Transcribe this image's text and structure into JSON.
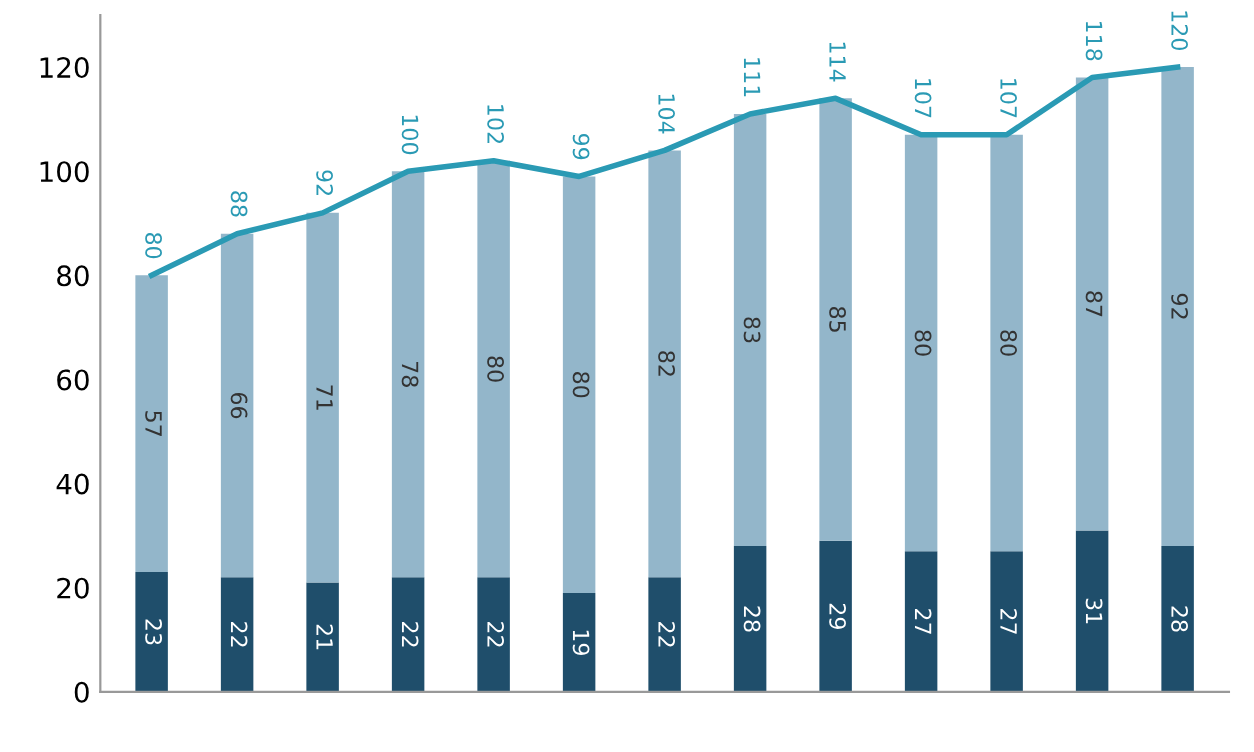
{
  "chart_data": {
    "type": "bar",
    "stacked": true,
    "data_labels": true,
    "categories": [
      null,
      null,
      null,
      null,
      null,
      null,
      null,
      null,
      null,
      null,
      null,
      null,
      null
    ],
    "series": [
      {
        "color": "#1f4e6b",
        "values": [
          23,
          22,
          21,
          22,
          22,
          19,
          22,
          28,
          29,
          27,
          27,
          31,
          28
        ]
      },
      {
        "color": "#93b6ca",
        "values": [
          57,
          66,
          71,
          78,
          80,
          80,
          82,
          83,
          85,
          80,
          80,
          87,
          92
        ]
      },
      {
        "type": "line",
        "color": "#2a9ab4",
        "values": [
          80,
          88,
          92,
          100,
          102,
          99,
          104,
          111,
          114,
          107,
          107,
          118,
          120
        ]
      }
    ],
    "ylim": [
      0,
      130
    ],
    "yticks": [
      0,
      20,
      40,
      60,
      80,
      100,
      120
    ],
    "grid": false,
    "legend": false
  }
}
